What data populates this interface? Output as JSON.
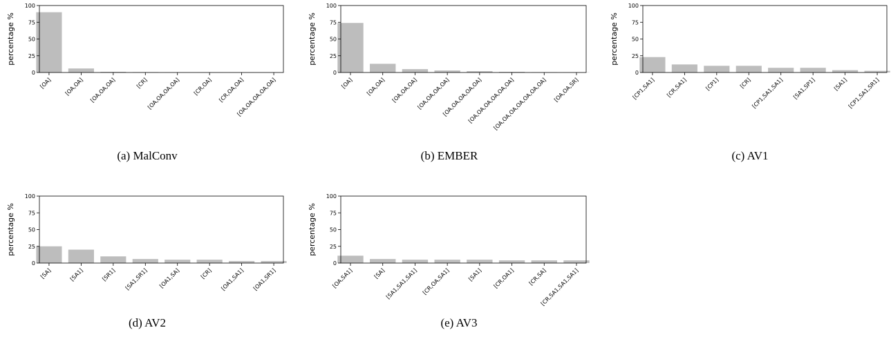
{
  "ylabel": "percentage %",
  "chart_data": [
    {
      "type": "bar",
      "caption": "(a) MalConv",
      "ylabel": "percentage %",
      "ylim": [
        0,
        100
      ],
      "yticks": [
        0,
        25,
        50,
        75,
        100
      ],
      "categories": [
        "[OA]",
        "[OA,OA]",
        "[OA,OA,OA]",
        "[CR]",
        "[OA,OA,OA,OA]",
        "[CR,OA]",
        "[CR,OA,OA]",
        "[OA,OA,OA,OA,OA]"
      ],
      "values": [
        90,
        6,
        1,
        0.6,
        0.3,
        0.2,
        0.2,
        0.1
      ],
      "bar_color": "#bdbdbd"
    },
    {
      "type": "bar",
      "caption": "(b) EMBER",
      "ylabel": "percentage %",
      "ylim": [
        0,
        100
      ],
      "yticks": [
        0,
        25,
        50,
        75,
        100
      ],
      "categories": [
        "[OA]",
        "[OA,OA]",
        "[OA,OA,OA]",
        "[OA,OA,OA,OA]",
        "[OA,OA,OA,OA,OA]",
        "[OA,OA,OA,OA,OA,OA]",
        "[OA,OA,OA,OA,OA,OA,OA]",
        "[OA,OA,SR]"
      ],
      "values": [
        74,
        13,
        5,
        3,
        2,
        1,
        0.5,
        0.3
      ],
      "bar_color": "#bdbdbd"
    },
    {
      "type": "bar",
      "caption": "(c) AV1",
      "ylabel": "percentage %",
      "ylim": [
        0,
        100
      ],
      "yticks": [
        0,
        25,
        50,
        75,
        100
      ],
      "categories": [
        "[CP1,SA1]",
        "[CR,SA1]",
        "[CP1]",
        "[CR]",
        "[CP1,SA1,SA1]",
        "[SA1,SP1]",
        "[SA1]",
        "[CP1,SA1,SR1]"
      ],
      "values": [
        23,
        12,
        10,
        10,
        7,
        7,
        3.5,
        2.5
      ],
      "bar_color": "#bdbdbd"
    },
    {
      "type": "bar",
      "caption": "(d) AV2",
      "ylabel": "percentage %",
      "ylim": [
        0,
        100
      ],
      "yticks": [
        0,
        25,
        50,
        75,
        100
      ],
      "categories": [
        "[SA]",
        "[SA1]",
        "[SR1]",
        "[SA1,SR1]",
        "[OA1,SA]",
        "[CR]",
        "[OA1,SA1]",
        "[OA1,SR1]"
      ],
      "values": [
        25,
        20,
        10,
        6,
        5,
        5,
        3,
        3
      ],
      "bar_color": "#bdbdbd"
    },
    {
      "type": "bar",
      "caption": "(e) AV3",
      "ylabel": "percentage %",
      "ylim": [
        0,
        100
      ],
      "yticks": [
        0,
        25,
        50,
        75,
        100
      ],
      "categories": [
        "[OA,SA1]",
        "[SA]",
        "[SA1,SA1,SA1]",
        "[CR,OA,SA1]",
        "[SA1]",
        "[CR,OA1]",
        "[CR,SA]",
        "[CR,SA1,SA1,SA1]"
      ],
      "values": [
        11,
        6,
        5,
        5,
        5,
        4,
        4,
        4
      ],
      "bar_color": "#bdbdbd"
    }
  ]
}
